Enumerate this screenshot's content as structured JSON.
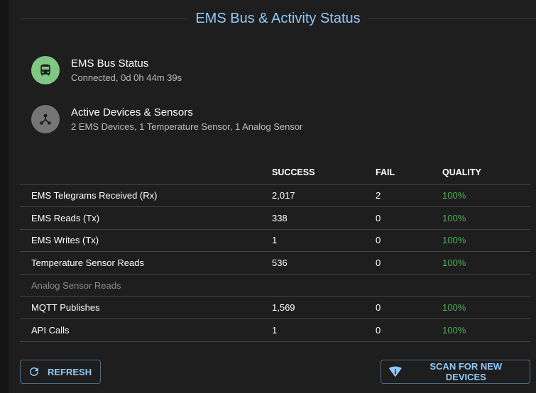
{
  "title": "EMS Bus & Activity Status",
  "status_items": [
    {
      "icon": "bus-icon",
      "color": "#81c784",
      "title": "EMS Bus Status",
      "subtitle": "Connected, 0d 0h 44m 39s"
    },
    {
      "icon": "device-hub-icon",
      "color": "#757575",
      "title": "Active Devices & Sensors",
      "subtitle": "2 EMS Devices, 1 Temperature Sensor, 1 Analog Sensor"
    }
  ],
  "table": {
    "headers": [
      "",
      "SUCCESS",
      "FAIL",
      "QUALITY"
    ],
    "rows": [
      {
        "label": "EMS Telegrams Received (Rx)",
        "success": "2,017",
        "fail": "2",
        "quality": "100%"
      },
      {
        "label": "EMS Reads (Tx)",
        "success": "338",
        "fail": "0",
        "quality": "100%"
      },
      {
        "label": "EMS Writes (Tx)",
        "success": "1",
        "fail": "0",
        "quality": "100%"
      },
      {
        "label": "Temperature Sensor Reads",
        "success": "536",
        "fail": "0",
        "quality": "100%"
      },
      {
        "label": "Analog Sensor Reads",
        "success": "",
        "fail": "",
        "quality": ""
      },
      {
        "label": "MQTT Publishes",
        "success": "1,569",
        "fail": "0",
        "quality": "100%"
      },
      {
        "label": "API Calls",
        "success": "1",
        "fail": "0",
        "quality": "100%"
      }
    ]
  },
  "buttons": {
    "refresh": "REFRESH",
    "scan": "SCAN FOR NEW DEVICES"
  },
  "colors": {
    "accent": "#90caf9",
    "quality": "#4caf50"
  }
}
